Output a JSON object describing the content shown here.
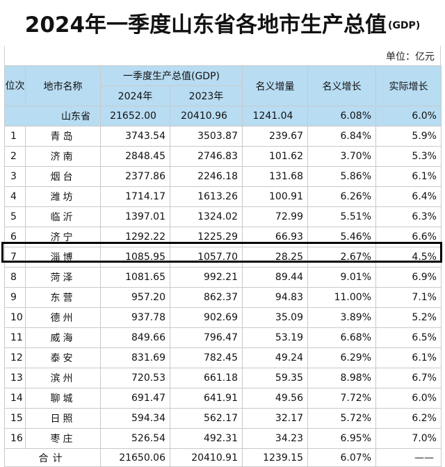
{
  "title": {
    "main": "2024年一季度山东省各地市生产总值",
    "suffix": "(GDP)"
  },
  "unit": "单位：亿元",
  "headers": {
    "rank": "位次",
    "city": "地市名称",
    "gdp_group": "一季度生产总值(GDP)",
    "y2024": "2024年",
    "y2023": "2023年",
    "nominal_inc": "名义增量",
    "nominal_growth": "名义增长",
    "real_growth": "实际增长"
  },
  "province": {
    "name": "山东省",
    "v2024": "21652.00",
    "v2023": "20410.96",
    "inc": "1241.04",
    "nominal": "6.08%",
    "real": "6.0%"
  },
  "rows": [
    {
      "rank": "1",
      "city": "青岛",
      "v2024": "3743.54",
      "v2023": "3503.87",
      "inc": "239.67",
      "nominal": "6.84%",
      "real": "5.9%"
    },
    {
      "rank": "2",
      "city": "济南",
      "v2024": "2848.45",
      "v2023": "2746.83",
      "inc": "101.62",
      "nominal": "3.70%",
      "real": "5.3%"
    },
    {
      "rank": "3",
      "city": "烟台",
      "v2024": "2377.86",
      "v2023": "2246.18",
      "inc": "131.68",
      "nominal": "5.86%",
      "real": "6.1%"
    },
    {
      "rank": "4",
      "city": "潍坊",
      "v2024": "1714.17",
      "v2023": "1613.26",
      "inc": "100.91",
      "nominal": "6.26%",
      "real": "6.4%"
    },
    {
      "rank": "5",
      "city": "临沂",
      "v2024": "1397.01",
      "v2023": "1324.02",
      "inc": "72.99",
      "nominal": "5.51%",
      "real": "6.3%"
    },
    {
      "rank": "6",
      "city": "济宁",
      "v2024": "1292.22",
      "v2023": "1225.29",
      "inc": "66.93",
      "nominal": "5.46%",
      "real": "6.6%"
    },
    {
      "rank": "7",
      "city": "淄博",
      "v2024": "1085.95",
      "v2023": "1057.70",
      "inc": "28.25",
      "nominal": "2.67%",
      "real": "4.5%"
    },
    {
      "rank": "8",
      "city": "菏泽",
      "v2024": "1081.65",
      "v2023": "992.21",
      "inc": "89.44",
      "nominal": "9.01%",
      "real": "6.9%"
    },
    {
      "rank": "9",
      "city": "东营",
      "v2024": "957.20",
      "v2023": "862.37",
      "inc": "94.83",
      "nominal": "11.00%",
      "real": "7.1%"
    },
    {
      "rank": "10",
      "city": "德州",
      "v2024": "937.78",
      "v2023": "902.69",
      "inc": "35.09",
      "nominal": "3.89%",
      "real": "5.2%"
    },
    {
      "rank": "11",
      "city": "威海",
      "v2024": "849.66",
      "v2023": "796.47",
      "inc": "53.19",
      "nominal": "6.68%",
      "real": "6.5%"
    },
    {
      "rank": "12",
      "city": "泰安",
      "v2024": "831.69",
      "v2023": "782.45",
      "inc": "49.24",
      "nominal": "6.29%",
      "real": "6.1%"
    },
    {
      "rank": "13",
      "city": "滨州",
      "v2024": "720.53",
      "v2023": "661.18",
      "inc": "59.35",
      "nominal": "8.98%",
      "real": "6.7%"
    },
    {
      "rank": "14",
      "city": "聊城",
      "v2024": "691.47",
      "v2023": "641.91",
      "inc": "49.56",
      "nominal": "7.72%",
      "real": "6.0%"
    },
    {
      "rank": "15",
      "city": "日照",
      "v2024": "594.34",
      "v2023": "562.17",
      "inc": "32.17",
      "nominal": "5.72%",
      "real": "6.2%"
    },
    {
      "rank": "16",
      "city": "枣庄",
      "v2024": "526.54",
      "v2023": "492.31",
      "inc": "34.23",
      "nominal": "6.95%",
      "real": "7.0%"
    }
  ],
  "total": {
    "label": "合计",
    "v2024": "21650.06",
    "v2023": "20410.91",
    "inc": "1239.15",
    "nominal": "6.07%",
    "real": "——"
  },
  "highlighted_city": "淄博",
  "colors": {
    "header_bg": "#b8dcf2",
    "highlight_border": "#000000"
  }
}
